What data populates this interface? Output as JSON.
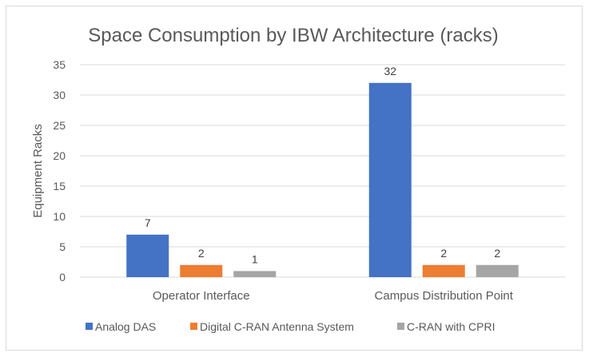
{
  "chart_data": {
    "type": "bar",
    "title": "Space Consumption by IBW Architecture (racks)",
    "xlabel": "",
    "ylabel": "Equipment Racks",
    "ylim": [
      0,
      35
    ],
    "yticks": [
      0,
      5,
      10,
      15,
      20,
      25,
      30,
      35
    ],
    "grid": true,
    "legend_position": "bottom",
    "categories": [
      "Operator Interface",
      "Campus Distribution Point"
    ],
    "series": [
      {
        "name": "Analog DAS",
        "color": "#4472c4",
        "values": [
          7,
          32
        ]
      },
      {
        "name": "Digital C-RAN Antenna System",
        "color": "#ed7d31",
        "values": [
          2,
          2
        ]
      },
      {
        "name": "C-RAN with CPRI",
        "color": "#a5a5a5",
        "values": [
          1,
          2
        ]
      }
    ],
    "data_labels": true
  }
}
